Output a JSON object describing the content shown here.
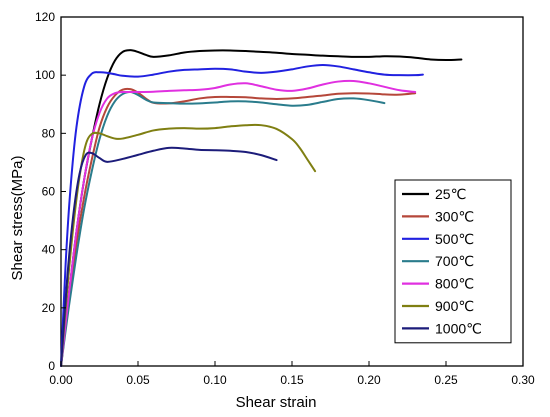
{
  "chart_data": {
    "type": "line",
    "title": "",
    "xlabel": "Shear strain",
    "ylabel": "Shear stress(MPa)",
    "xlim": [
      0,
      0.3
    ],
    "ylim": [
      0,
      120
    ],
    "xticks": [
      0.0,
      0.05,
      0.1,
      0.15,
      0.2,
      0.25,
      0.3
    ],
    "xtick_labels": [
      "0.00",
      "0.05",
      "0.10",
      "0.15",
      "0.20",
      "0.25",
      "0.30"
    ],
    "yticks": [
      0,
      20,
      40,
      60,
      80,
      100,
      120
    ],
    "ytick_labels": [
      "0",
      "20",
      "40",
      "60",
      "80",
      "100",
      "120"
    ],
    "grid": false,
    "legend_position": "right",
    "series": [
      {
        "name": "25℃",
        "color": "#000000",
        "x": [
          0,
          0.005,
          0.01,
          0.015,
          0.02,
          0.025,
          0.03,
          0.035,
          0.04,
          0.045,
          0.05,
          0.055,
          0.06,
          0.07,
          0.08,
          0.09,
          0.1,
          0.11,
          0.12,
          0.13,
          0.14,
          0.15,
          0.16,
          0.17,
          0.18,
          0.19,
          0.2,
          0.21,
          0.22,
          0.23,
          0.24,
          0.25,
          0.26
        ],
        "y": [
          0,
          24,
          46,
          64,
          78,
          90,
          99,
          105,
          108,
          108.6,
          108,
          107,
          106.3,
          106.8,
          107.8,
          108.3,
          108.5,
          108.5,
          108.3,
          108,
          107.7,
          107.3,
          107,
          106.7,
          106.5,
          106.3,
          106.3,
          106.5,
          106.4,
          106,
          105.4,
          105.2,
          105.4
        ]
      },
      {
        "name": "300℃",
        "color": "#b5473a",
        "x": [
          0,
          0.005,
          0.01,
          0.015,
          0.02,
          0.025,
          0.03,
          0.035,
          0.04,
          0.045,
          0.05,
          0.055,
          0.06,
          0.07,
          0.08,
          0.09,
          0.1,
          0.11,
          0.12,
          0.13,
          0.14,
          0.15,
          0.16,
          0.17,
          0.18,
          0.19,
          0.2,
          0.21,
          0.22,
          0.23
        ],
        "y": [
          0,
          22,
          42,
          58,
          71,
          82,
          89,
          93,
          95,
          95.2,
          94,
          92,
          90.5,
          90.3,
          91,
          92,
          92.5,
          92.5,
          92.4,
          92,
          91.8,
          92,
          92.5,
          93,
          93.6,
          93.8,
          93.7,
          93.4,
          93.3,
          93.8
        ]
      },
      {
        "name": "500℃",
        "color": "#2121e0",
        "x": [
          0,
          0.003,
          0.006,
          0.01,
          0.015,
          0.02,
          0.025,
          0.03,
          0.035,
          0.04,
          0.05,
          0.06,
          0.07,
          0.08,
          0.09,
          0.1,
          0.11,
          0.12,
          0.13,
          0.14,
          0.15,
          0.16,
          0.17,
          0.18,
          0.19,
          0.2,
          0.21,
          0.22,
          0.23,
          0.235
        ],
        "y": [
          0,
          35,
          60,
          82,
          96,
          100.5,
          101,
          100.8,
          100.3,
          99.8,
          99.5,
          100.2,
          101.2,
          101.8,
          102,
          102.2,
          102,
          101.2,
          100.8,
          101.2,
          102,
          103,
          103.5,
          103,
          102,
          101,
          100.2,
          100,
          100,
          100.2
        ]
      },
      {
        "name": "700℃",
        "color": "#2a7c8c",
        "x": [
          0,
          0.005,
          0.01,
          0.015,
          0.02,
          0.025,
          0.03,
          0.035,
          0.04,
          0.045,
          0.05,
          0.055,
          0.06,
          0.07,
          0.08,
          0.09,
          0.1,
          0.11,
          0.12,
          0.13,
          0.14,
          0.15,
          0.16,
          0.17,
          0.18,
          0.19,
          0.2,
          0.21
        ],
        "y": [
          0,
          20,
          38,
          54,
          67,
          78,
          86,
          91,
          93.5,
          94.2,
          93.2,
          91.6,
          90.6,
          90.4,
          90.2,
          90.3,
          90.6,
          91,
          91,
          90.6,
          90,
          89.5,
          89.8,
          90.8,
          91.8,
          92,
          91.4,
          90.4
        ]
      },
      {
        "name": "800℃",
        "color": "#e030e0",
        "x": [
          0,
          0.005,
          0.01,
          0.015,
          0.02,
          0.025,
          0.03,
          0.035,
          0.04,
          0.045,
          0.05,
          0.06,
          0.07,
          0.08,
          0.09,
          0.1,
          0.11,
          0.12,
          0.13,
          0.14,
          0.15,
          0.16,
          0.17,
          0.18,
          0.19,
          0.2,
          0.21,
          0.22,
          0.23
        ],
        "y": [
          0,
          24,
          46,
          64,
          78,
          87,
          92,
          93.8,
          94.2,
          94.2,
          94.2,
          94.3,
          94.6,
          94.8,
          95,
          95.6,
          96.8,
          97.2,
          96.2,
          95,
          94.6,
          95.4,
          96.8,
          97.8,
          98,
          97.2,
          96,
          94.8,
          94.2
        ]
      },
      {
        "name": "900℃",
        "color": "#7f7f12",
        "x": [
          0,
          0.004,
          0.008,
          0.012,
          0.016,
          0.02,
          0.025,
          0.03,
          0.035,
          0.04,
          0.05,
          0.06,
          0.07,
          0.08,
          0.09,
          0.1,
          0.11,
          0.12,
          0.13,
          0.14,
          0.15,
          0.155,
          0.16,
          0.165
        ],
        "y": [
          0,
          26,
          48,
          65,
          76,
          79.8,
          80,
          79,
          78.2,
          78.2,
          79.5,
          81,
          81.6,
          81.8,
          81.6,
          81.8,
          82.4,
          82.8,
          82.8,
          81.5,
          78,
          75,
          71,
          67
        ]
      },
      {
        "name": "1000℃",
        "color": "#1c1c7a",
        "x": [
          0,
          0.004,
          0.008,
          0.012,
          0.016,
          0.02,
          0.025,
          0.03,
          0.04,
          0.05,
          0.06,
          0.07,
          0.08,
          0.09,
          0.1,
          0.11,
          0.12,
          0.13,
          0.14
        ],
        "y": [
          0,
          30,
          52,
          66,
          72.5,
          73.2,
          71.5,
          70.2,
          71.2,
          72.6,
          74,
          75,
          74.8,
          74.3,
          74.2,
          74,
          73.6,
          72.5,
          70.8
        ]
      }
    ]
  }
}
